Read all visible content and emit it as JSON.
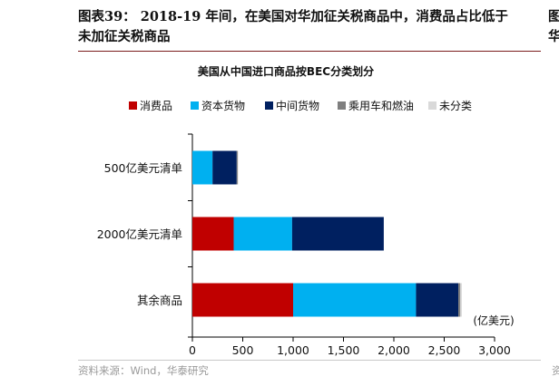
{
  "figure": {
    "title_line1": "图表39： 2018-19 年间，在美国对华加征关税商品中，消费品占比低于",
    "title_line2": "未加征关税商品",
    "source": "资料来源：Wind，华泰研究"
  },
  "adjacent_figure": {
    "title_line1": "图",
    "title_line2": "华",
    "source": "资"
  },
  "chart_data": {
    "type": "bar",
    "orientation": "horizontal",
    "stacked": true,
    "title": "美国从中国进口商品按BEC分类划分",
    "categories": [
      "500亿美元清单",
      "2000亿美元清单",
      "其余商品"
    ],
    "series": [
      {
        "name": "消费品",
        "color": "#c00000",
        "values": [
          0,
          410,
          1000
        ]
      },
      {
        "name": "资本货物",
        "color": "#00b0f0",
        "values": [
          200,
          580,
          1220
        ]
      },
      {
        "name": "中间货物",
        "color": "#002060",
        "values": [
          240,
          910,
          420
        ]
      },
      {
        "name": "乘用车和燃油",
        "color": "#7f7f7f",
        "values": [
          10,
          0,
          20
        ]
      },
      {
        "name": "未分类",
        "color": "#d9d9d9",
        "values": [
          5,
          0,
          15
        ]
      }
    ],
    "xlim": [
      0,
      3000
    ],
    "xticks": [
      "0",
      "500",
      "1,000",
      "1,500",
      "2,000",
      "2,500",
      "3,000"
    ],
    "unit": "(亿美元)",
    "legend_position": "top",
    "grid": false
  }
}
